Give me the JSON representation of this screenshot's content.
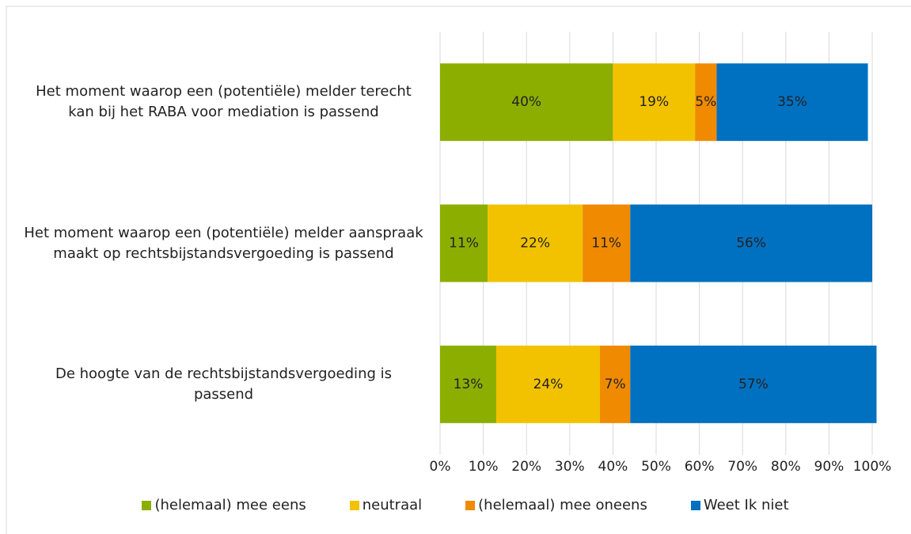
{
  "chart_data": {
    "type": "stacked-barh",
    "categories": [
      "Het moment waarop een (potentiële) melder terecht kan bij het RABA voor mediation is passend",
      "Het moment waarop een (potentiële) melder aanspraak maakt op rechtsbijstandsvergoeding is passend",
      "De hoogte van de rechtsbijstandsvergoeding is passend"
    ],
    "series": [
      {
        "name": "(helemaal) mee eens",
        "color": "#8cae00",
        "values": [
          40,
          11,
          13
        ],
        "value_labels": [
          "40%",
          "11%",
          "13%"
        ]
      },
      {
        "name": "neutraal",
        "color": "#f2c200",
        "values": [
          19,
          22,
          24
        ],
        "value_labels": [
          "19%",
          "22%",
          "24%"
        ]
      },
      {
        "name": "(helemaal) mee oneens",
        "color": "#f08a00",
        "values": [
          5,
          11,
          7
        ],
        "value_labels": [
          "5%",
          "11%",
          "7%"
        ]
      },
      {
        "name": "Weet Ik niet",
        "color": "#0070c0",
        "values": [
          35,
          56,
          57
        ],
        "value_labels": [
          "35%",
          "56%",
          "57%"
        ]
      }
    ],
    "xlim": [
      0,
      100
    ],
    "xticks": [
      {
        "value": 0,
        "label": "0%"
      },
      {
        "value": 10,
        "label": "10%"
      },
      {
        "value": 20,
        "label": "20%"
      },
      {
        "value": 30,
        "label": "30%"
      },
      {
        "value": 40,
        "label": "40%"
      },
      {
        "value": 50,
        "label": "50%"
      },
      {
        "value": 60,
        "label": "60%"
      },
      {
        "value": 70,
        "label": "70%"
      },
      {
        "value": 80,
        "label": "80%"
      },
      {
        "value": 90,
        "label": "90%"
      },
      {
        "value": 100,
        "label": "100%"
      }
    ],
    "grid": true,
    "legend": "bottom"
  }
}
